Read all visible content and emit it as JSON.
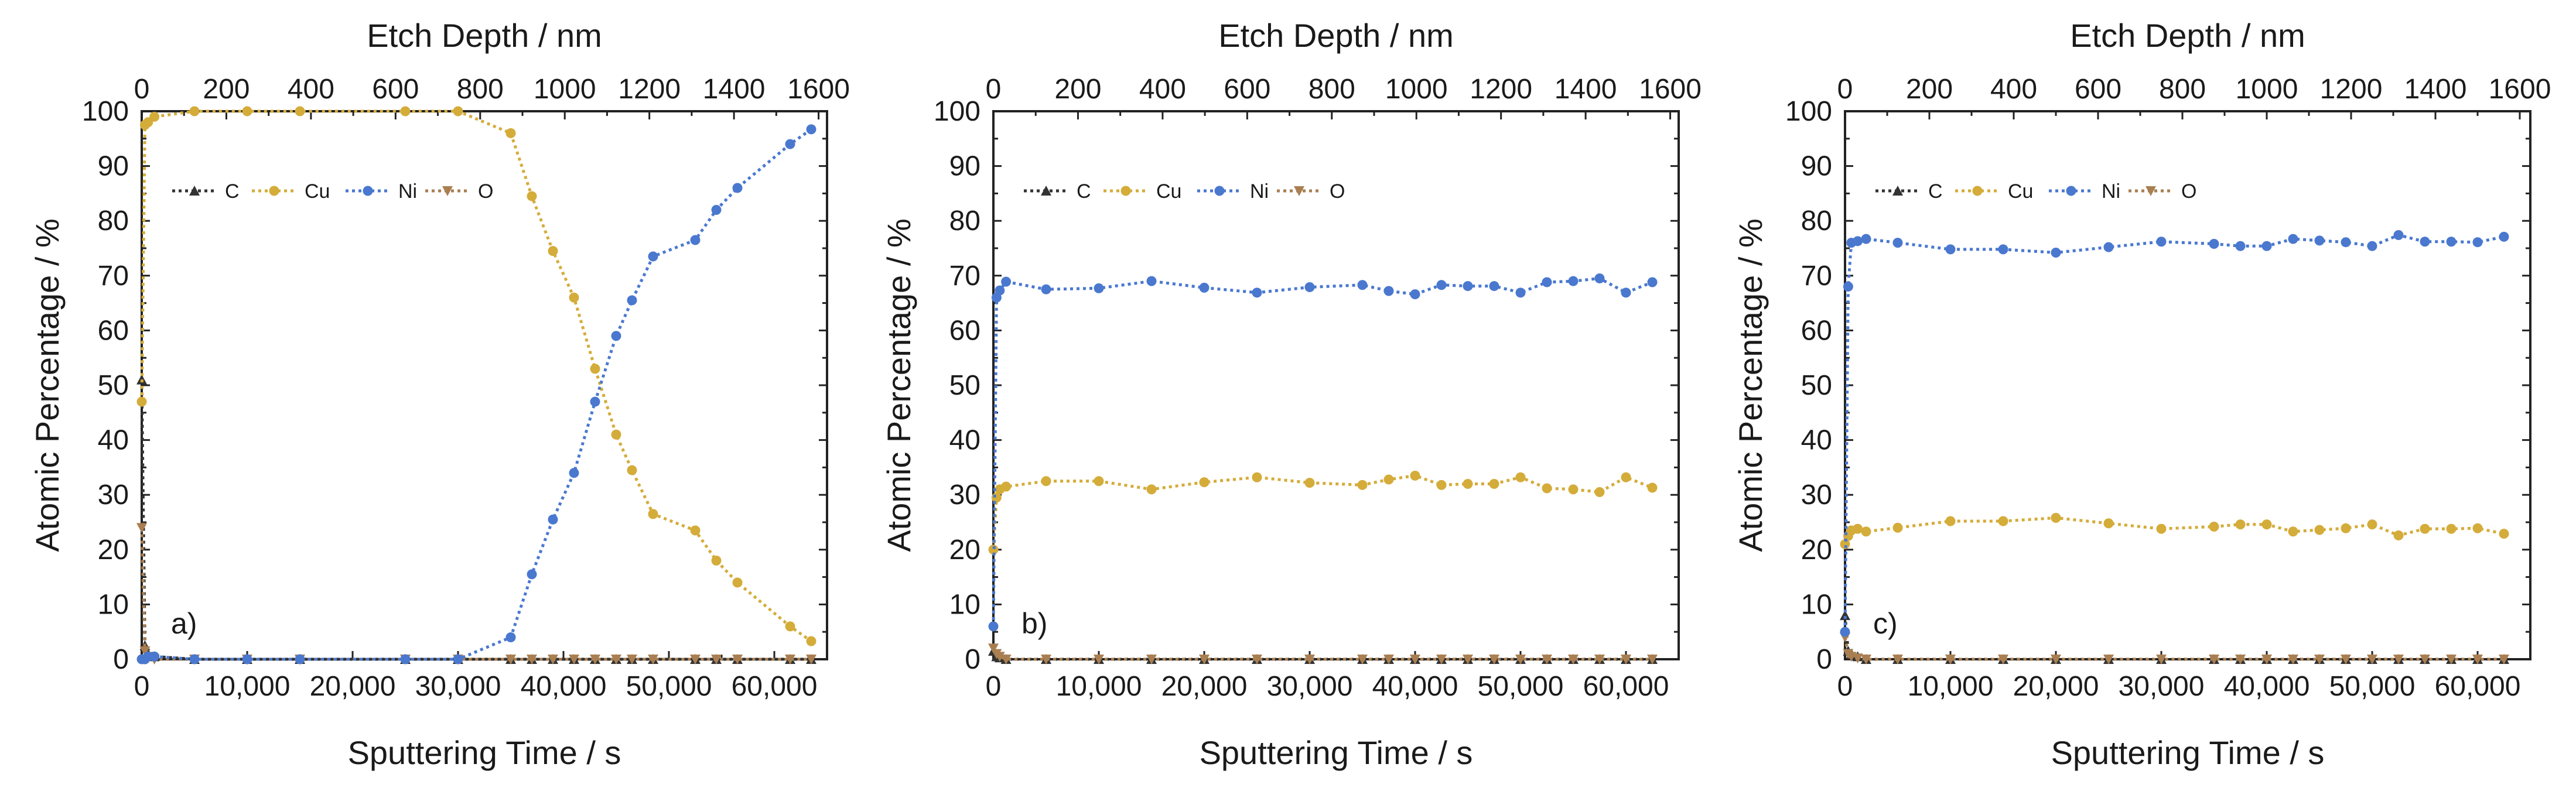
{
  "figure": {
    "colors": {
      "C": "#333333",
      "Cu": "#d4ac3a",
      "Ni": "#4a78cf",
      "O": "#a97f52"
    },
    "series_order": [
      "C",
      "Cu",
      "Ni",
      "O"
    ],
    "common": {
      "xlabel": "Sputtering Time / s",
      "ylabel": "Atomic Percentage / %",
      "top_xlabel": "Etch Depth / nm",
      "xlim": [
        0,
        65000
      ],
      "ylim": [
        0,
        100
      ],
      "x_ticks": [
        0,
        10000,
        20000,
        30000,
        40000,
        50000,
        60000
      ],
      "x_tick_labels": [
        "0",
        "10,000",
        "20,000",
        "30,000",
        "40,000",
        "50,000",
        "60,000"
      ],
      "y_ticks": [
        0,
        10,
        20,
        30,
        40,
        50,
        60,
        70,
        80,
        90,
        100
      ],
      "y_tick_labels": [
        "0",
        "10",
        "20",
        "30",
        "40",
        "50",
        "60",
        "70",
        "80",
        "90",
        "100"
      ],
      "top_ticks": [
        0,
        200,
        400,
        600,
        800,
        1000,
        1200,
        1400,
        1600
      ],
      "top_tick_labels": [
        "0",
        "200",
        "400",
        "600",
        "800",
        "1000",
        "1200",
        "1400",
        "1600"
      ],
      "legend_labels": [
        "C",
        "Cu",
        "Ni",
        "O"
      ]
    }
  },
  "chart_data": [
    {
      "type": "line",
      "panel_label": "a)",
      "xlabel": "Sputtering Time / s",
      "ylabel": "Atomic Percentage / %",
      "top_xlabel": "Etch Depth / nm",
      "top_xlim": [
        0,
        1620
      ],
      "legend_position": "top-left",
      "x": [
        0,
        300,
        600,
        1200,
        5000,
        10000,
        15000,
        25000,
        30000,
        35000,
        37000,
        39000,
        41000,
        43000,
        45000,
        46500,
        48500,
        52500,
        54500,
        56500,
        61500,
        63500
      ],
      "series": [
        {
          "name": "C",
          "values": [
            51,
            2.5,
            1,
            0.5,
            0,
            0,
            0,
            0,
            0,
            0,
            0,
            0,
            0,
            0,
            0,
            0,
            0,
            0,
            0,
            0,
            0,
            0
          ]
        },
        {
          "name": "Cu",
          "values": [
            47,
            97.5,
            98,
            99,
            100,
            100,
            100,
            100,
            100,
            96,
            84.5,
            74.5,
            66,
            53,
            41,
            34.5,
            26.5,
            23.5,
            18,
            14,
            6,
            3.3
          ]
        },
        {
          "name": "Ni",
          "values": [
            0,
            0,
            0.5,
            0.5,
            0,
            0,
            0,
            0,
            0,
            4,
            15.5,
            25.5,
            34,
            47,
            59,
            65.5,
            73.5,
            76.5,
            82,
            86,
            94,
            96.7
          ]
        },
        {
          "name": "O",
          "values": [
            24,
            1.5,
            0.5,
            0,
            0,
            0,
            0,
            0,
            0,
            0,
            0,
            0,
            0,
            0,
            0,
            0,
            0,
            0,
            0,
            0,
            0,
            0
          ]
        }
      ]
    },
    {
      "type": "line",
      "panel_label": "b)",
      "xlabel": "Sputtering Time / s",
      "ylabel": "Atomic Percentage / %",
      "top_xlabel": "Etch Depth / nm",
      "top_xlim": [
        0,
        1620
      ],
      "legend_position": "top-left",
      "x": [
        0,
        300,
        600,
        1200,
        5000,
        10000,
        15000,
        20000,
        25000,
        30000,
        35000,
        37500,
        40000,
        42500,
        45000,
        47500,
        50000,
        52500,
        55000,
        57500,
        60000,
        62500
      ],
      "series": [
        {
          "name": "C",
          "values": [
            1.5,
            0.5,
            0.3,
            0,
            0,
            0,
            0,
            0,
            0,
            0,
            0,
            0,
            0,
            0,
            0,
            0,
            0,
            0,
            0,
            0,
            0,
            0
          ]
        },
        {
          "name": "Cu",
          "values": [
            20,
            29.5,
            31,
            31.5,
            32.5,
            32.5,
            31,
            32.3,
            33.2,
            32.2,
            31.8,
            32.8,
            33.5,
            31.8,
            32,
            32,
            33.2,
            31.2,
            31,
            30.5,
            33.2,
            31.3
          ]
        },
        {
          "name": "Ni",
          "values": [
            6,
            66,
            67.3,
            68.9,
            67.5,
            67.7,
            69,
            67.8,
            66.9,
            67.9,
            68.3,
            67.2,
            66.6,
            68.3,
            68.1,
            68.1,
            66.9,
            68.8,
            69,
            69.5,
            66.9,
            68.8
          ]
        },
        {
          "name": "O",
          "values": [
            2,
            1,
            0.5,
            0,
            0,
            0,
            0,
            0,
            0,
            0,
            0,
            0,
            0,
            0,
            0,
            0,
            0,
            0,
            0,
            0,
            0,
            0
          ]
        }
      ]
    },
    {
      "type": "line",
      "panel_label": "c)",
      "xlabel": "Sputtering Time / s",
      "ylabel": "Atomic Percentage / %",
      "top_xlabel": "Etch Depth / nm",
      "top_xlim": [
        0,
        1625
      ],
      "legend_position": "top-left",
      "x": [
        0,
        300,
        600,
        1200,
        2000,
        5000,
        10000,
        15000,
        20000,
        25000,
        30000,
        35000,
        37500,
        40000,
        42500,
        45000,
        47500,
        50000,
        52500,
        55000,
        57500,
        60000,
        62500
      ],
      "series": [
        {
          "name": "C",
          "values": [
            8,
            1.5,
            1,
            0.5,
            0,
            0,
            0,
            0,
            0,
            0,
            0,
            0,
            0,
            0,
            0,
            0,
            0,
            0,
            0,
            0,
            0,
            0,
            0
          ]
        },
        {
          "name": "Cu",
          "values": [
            21,
            22.5,
            23.5,
            23.8,
            23.3,
            24,
            25.2,
            25.2,
            25.8,
            24.8,
            23.8,
            24.2,
            24.6,
            24.6,
            23.3,
            23.6,
            23.9,
            24.6,
            22.6,
            23.8,
            23.8,
            23.9,
            22.9
          ]
        },
        {
          "name": "Ni",
          "values": [
            5,
            68,
            76,
            76.3,
            76.7,
            76,
            74.8,
            74.8,
            74.2,
            75.2,
            76.2,
            75.8,
            75.4,
            75.4,
            76.7,
            76.4,
            76.1,
            75.4,
            77.4,
            76.2,
            76.2,
            76.1,
            77.1
          ]
        },
        {
          "name": "O",
          "values": [
            4,
            1,
            0.5,
            0.2,
            0,
            0,
            0,
            0,
            0,
            0,
            0,
            0,
            0,
            0,
            0,
            0,
            0,
            0,
            0,
            0,
            0,
            0,
            0
          ]
        }
      ]
    }
  ]
}
